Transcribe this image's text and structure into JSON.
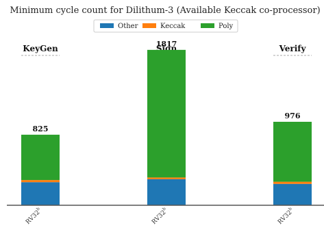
{
  "chart_data": {
    "type": "bar",
    "stacked": true,
    "title": "Minimum cycle count for Dilithum-3 (Available Keccak co-processor)",
    "groups": [
      {
        "label": "KeyGen",
        "category": "RV32",
        "category_sup": "b",
        "total_label": "825"
      },
      {
        "label": "Sign",
        "category": "RV32",
        "category_sup": "b",
        "total_label": "1817"
      },
      {
        "label": "Verify",
        "category": "RV32",
        "category_sup": "b",
        "total_label": "976"
      }
    ],
    "series": [
      {
        "name": "Other",
        "color": "#1f77b4",
        "values": [
          270,
          305,
          250
        ]
      },
      {
        "name": "Keccak",
        "color": "#ff7f0e",
        "values": [
          25,
          20,
          25
        ]
      },
      {
        "name": "Poly",
        "color": "#2ca02c",
        "values": [
          530,
          1492,
          701
        ]
      }
    ],
    "ylim": [
      0,
      1880
    ],
    "grid": false,
    "legend_position": "top-center"
  }
}
